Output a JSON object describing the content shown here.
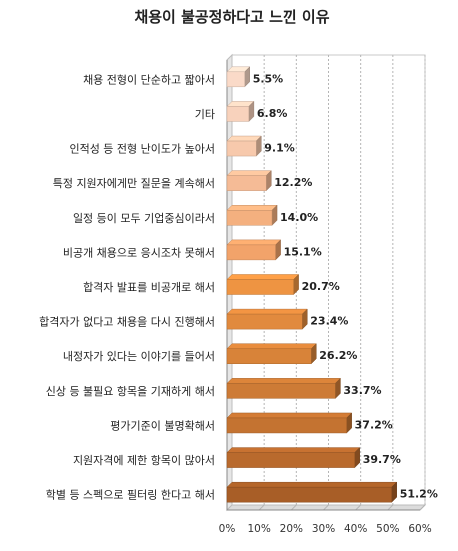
{
  "chart_data": {
    "type": "bar",
    "orientation": "horizontal",
    "title": "채용이 불공정하다고 느낀 이유",
    "xlabel": "",
    "ylabel": "",
    "xlim": [
      0,
      60
    ],
    "x_ticks": [
      "0%",
      "10%",
      "20%",
      "30%",
      "40%",
      "50%",
      "60%"
    ],
    "grid": true,
    "legend": "none",
    "categories": [
      "채용 전형이 단순하고 짧아서",
      "기타",
      "인적성 등 전형 난이도가 높아서",
      "특정 지원자에게만 질문을 계속해서",
      "일정 등이 모두 기업중심이라서",
      "비공개 채용으로 응시조차 못해서",
      "합격자 발표를 비공개로 해서",
      "합격자가 없다고 채용을 다시 진행해서",
      "내정자가 있다는 이야기를 들어서",
      "신상 등 불필요 항목을 기재하게 해서",
      "평가기준이 불명확해서",
      "지원자격에 제한 항목이 많아서",
      "학별 등 스펙으로 필터링 한다고 해서"
    ],
    "values": [
      5.5,
      6.8,
      9.1,
      12.2,
      14.0,
      15.1,
      20.7,
      23.4,
      26.2,
      33.7,
      37.2,
      39.7,
      51.2
    ],
    "value_labels": [
      "5.5%",
      "6.8%",
      "9.1%",
      "12.2%",
      "14.0%",
      "15.1%",
      "20.7%",
      "23.4%",
      "26.2%",
      "33.7%",
      "37.2%",
      "39.7%",
      "51.2%"
    ],
    "bar_colors": [
      "#fadac8",
      "#f8d2bc",
      "#f7c9ac",
      "#f5bb96",
      "#f4b07f",
      "#f2a36a",
      "#ee9442",
      "#e18a3e",
      "#d88339",
      "#cd7b36",
      "#c47331",
      "#b96a2d",
      "#a85e27"
    ]
  }
}
